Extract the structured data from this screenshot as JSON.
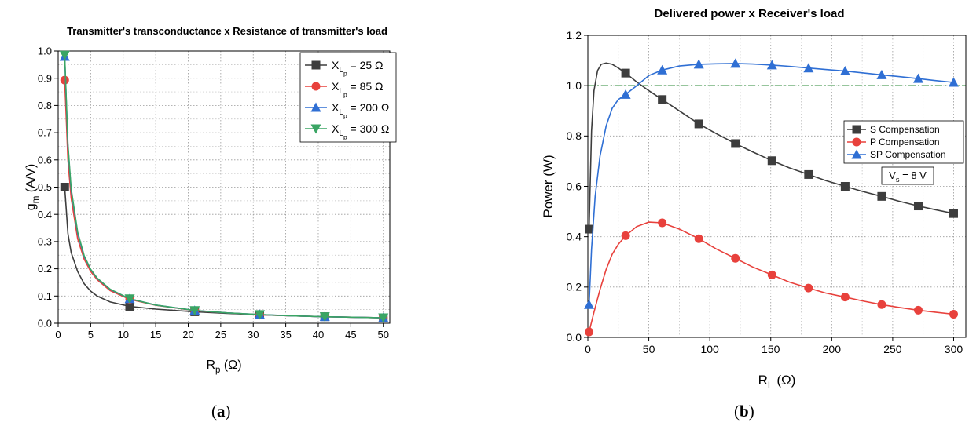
{
  "chart_data": [
    {
      "type": "line",
      "title": "Transmitter's transconductance x Resistance of transmitter's load",
      "xlabel_main": "R",
      "xlabel_sub": "p",
      "xlabel_unit": " (Ω)",
      "ylabel_main": "g",
      "ylabel_sub": "m",
      "ylabel_unit": " (A/V)",
      "xlim": [
        0,
        51
      ],
      "ylim": [
        0,
        1.0
      ],
      "xticks": [
        0,
        5,
        10,
        15,
        20,
        25,
        30,
        35,
        40,
        45,
        50
      ],
      "yticks": [
        0.0,
        0.1,
        0.2,
        0.3,
        0.4,
        0.5,
        0.6,
        0.7,
        0.8,
        0.9,
        1.0
      ],
      "grid": true,
      "legend_position": "top-right",
      "series": [
        {
          "name": "X",
          "name_sub": "L",
          "name_subsub": "p",
          "name_suffix": " = 25 Ω",
          "color": "#3d3d3d",
          "marker": "square",
          "x": [
            1,
            11,
            21,
            31,
            41,
            50
          ],
          "y": [
            0.5,
            0.062,
            0.042,
            0.031,
            0.024,
            0.02
          ],
          "curve_x": [
            1,
            1.5,
            2,
            3,
            4,
            5,
            6,
            8,
            11,
            15,
            21,
            26,
            31,
            36,
            41,
            46,
            50
          ],
          "curve_y": [
            0.5,
            0.33,
            0.26,
            0.19,
            0.145,
            0.118,
            0.1,
            0.078,
            0.062,
            0.052,
            0.042,
            0.036,
            0.031,
            0.027,
            0.024,
            0.022,
            0.02
          ]
        },
        {
          "name": "X",
          "name_sub": "L",
          "name_subsub": "p",
          "name_suffix": " = 85 Ω",
          "color": "#e8413c",
          "marker": "circle",
          "x": [
            1,
            11,
            21,
            31,
            41,
            50
          ],
          "y": [
            0.893,
            0.088,
            0.046,
            0.031,
            0.024,
            0.02
          ],
          "curve_x": [
            1,
            1.5,
            2,
            3,
            4,
            5,
            6,
            8,
            11,
            15,
            21,
            26,
            31,
            36,
            41,
            46,
            50
          ],
          "curve_y": [
            0.893,
            0.6,
            0.46,
            0.31,
            0.235,
            0.19,
            0.16,
            0.12,
            0.088,
            0.066,
            0.046,
            0.038,
            0.031,
            0.027,
            0.024,
            0.022,
            0.02
          ]
        },
        {
          "name": "X",
          "name_sub": "L",
          "name_subsub": "p",
          "name_suffix": " = 200 Ω",
          "color": "#2f6fd4",
          "marker": "triangle-up",
          "x": [
            1,
            11,
            21,
            31,
            41,
            50
          ],
          "y": [
            0.98,
            0.09,
            0.047,
            0.032,
            0.024,
            0.02
          ],
          "curve_x": [
            1,
            1.5,
            2,
            3,
            4,
            5,
            6,
            8,
            11,
            15,
            21,
            26,
            31,
            36,
            41,
            46,
            50
          ],
          "curve_y": [
            0.98,
            0.65,
            0.49,
            0.33,
            0.245,
            0.197,
            0.165,
            0.124,
            0.09,
            0.067,
            0.047,
            0.038,
            0.032,
            0.027,
            0.024,
            0.022,
            0.02
          ]
        },
        {
          "name": "X",
          "name_sub": "L",
          "name_subsub": "p",
          "name_suffix": " = 300 Ω",
          "color": "#3aa564",
          "marker": "triangle-down",
          "x": [
            1,
            11,
            21,
            31,
            41,
            50
          ],
          "y": [
            0.985,
            0.09,
            0.047,
            0.032,
            0.024,
            0.02
          ],
          "curve_x": [
            1,
            1.5,
            2,
            3,
            4,
            5,
            6,
            8,
            11,
            15,
            21,
            26,
            31,
            36,
            41,
            46,
            50
          ],
          "curve_y": [
            0.985,
            0.66,
            0.495,
            0.335,
            0.248,
            0.198,
            0.166,
            0.125,
            0.09,
            0.067,
            0.047,
            0.038,
            0.032,
            0.027,
            0.024,
            0.022,
            0.02
          ]
        }
      ],
      "caption": "(a)"
    },
    {
      "type": "line",
      "title": "Delivered power x Receiver's load",
      "xlabel_main": "R",
      "xlabel_sub": "L",
      "xlabel_unit": " (Ω)",
      "ylabel_main": "Power (W)",
      "xlim": [
        0,
        310
      ],
      "ylim": [
        0,
        1.2
      ],
      "xticks": [
        0,
        50,
        100,
        150,
        200,
        250,
        300
      ],
      "yticks": [
        0.0,
        0.2,
        0.4,
        0.6,
        0.8,
        1.0,
        1.2
      ],
      "grid": true,
      "legend_position": "middle-right",
      "reference_line": {
        "y": 1.0,
        "color": "#2e8b3a",
        "style": "dash-dot"
      },
      "annotation": {
        "main": "V",
        "sub": "s",
        "suffix": " = 8 V"
      },
      "series": [
        {
          "name": "S Compensation",
          "color": "#3d3d3d",
          "marker": "square",
          "x": [
            1,
            31,
            61,
            91,
            121,
            151,
            181,
            211,
            241,
            271,
            300
          ],
          "y": [
            0.43,
            1.05,
            0.945,
            0.848,
            0.77,
            0.702,
            0.647,
            0.6,
            0.56,
            0.522,
            0.492
          ],
          "curve_x": [
            1,
            2,
            3,
            5,
            8,
            11,
            15,
            20,
            25,
            31,
            40,
            50,
            61,
            75,
            91,
            105,
            121,
            135,
            151,
            165,
            181,
            195,
            211,
            225,
            241,
            255,
            271,
            285,
            300
          ],
          "curve_y": [
            0.43,
            0.62,
            0.82,
            0.98,
            1.06,
            1.085,
            1.09,
            1.085,
            1.07,
            1.05,
            1.015,
            0.98,
            0.945,
            0.9,
            0.848,
            0.81,
            0.77,
            0.737,
            0.702,
            0.674,
            0.647,
            0.623,
            0.6,
            0.58,
            0.56,
            0.541,
            0.522,
            0.507,
            0.492
          ]
        },
        {
          "name": "P Compensation",
          "color": "#e8413c",
          "marker": "circle",
          "x": [
            1,
            31,
            61,
            91,
            121,
            151,
            181,
            211,
            241,
            271,
            300
          ],
          "y": [
            0.022,
            0.404,
            0.455,
            0.392,
            0.314,
            0.248,
            0.196,
            0.16,
            0.13,
            0.108,
            0.092
          ],
          "curve_x": [
            1,
            5,
            10,
            15,
            20,
            25,
            31,
            40,
            50,
            61,
            75,
            91,
            105,
            121,
            135,
            151,
            165,
            181,
            195,
            211,
            225,
            241,
            255,
            271,
            285,
            300
          ],
          "curve_y": [
            0.022,
            0.1,
            0.19,
            0.27,
            0.33,
            0.37,
            0.404,
            0.44,
            0.458,
            0.455,
            0.43,
            0.392,
            0.352,
            0.314,
            0.28,
            0.248,
            0.22,
            0.196,
            0.176,
            0.16,
            0.145,
            0.13,
            0.119,
            0.108,
            0.1,
            0.092
          ]
        },
        {
          "name": "SP Compensation",
          "color": "#2f6fd4",
          "marker": "triangle-up",
          "x": [
            1,
            31,
            61,
            91,
            121,
            151,
            181,
            211,
            241,
            271,
            300
          ],
          "y": [
            0.13,
            0.965,
            1.062,
            1.085,
            1.088,
            1.082,
            1.07,
            1.058,
            1.043,
            1.028,
            1.013
          ],
          "curve_x": [
            1,
            3,
            6,
            10,
            15,
            20,
            25,
            31,
            40,
            50,
            61,
            75,
            91,
            105,
            121,
            135,
            151,
            165,
            181,
            195,
            211,
            225,
            241,
            255,
            271,
            285,
            300
          ],
          "curve_y": [
            0.13,
            0.35,
            0.56,
            0.72,
            0.84,
            0.91,
            0.945,
            0.965,
            1.0,
            1.04,
            1.062,
            1.078,
            1.085,
            1.087,
            1.088,
            1.086,
            1.082,
            1.077,
            1.07,
            1.064,
            1.058,
            1.051,
            1.043,
            1.036,
            1.028,
            1.02,
            1.013
          ]
        }
      ],
      "caption": "(b)"
    }
  ]
}
